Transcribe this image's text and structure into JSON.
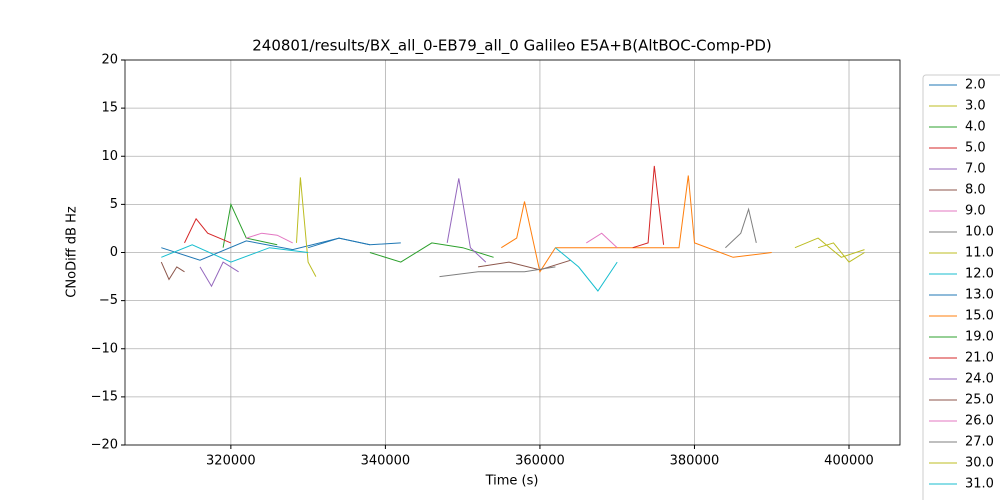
{
  "chart_data": {
    "type": "line",
    "title": "240801/results/BX_all_0-EB79_all_0 Galileo E5A+B(AltBOC-Comp-PD)",
    "x_label": "Time (s)",
    "y_label": "CNoDiff dB Hz",
    "xlim": [
      306300,
      406600
    ],
    "ylim": [
      -20,
      20
    ],
    "xticks": [
      320000,
      340000,
      360000,
      380000,
      400000
    ],
    "yticks": [
      {
        "value": -20,
        "label": "−20"
      },
      {
        "value": -15,
        "label": "−15"
      },
      {
        "value": -10,
        "label": "−10"
      },
      {
        "value": -5,
        "label": "−5"
      },
      0,
      5,
      10,
      15,
      20
    ],
    "grid": true,
    "legend": "outside right",
    "series": [
      {
        "name": "2.0",
        "color": "#1f77b4",
        "x": [
          311000,
          316000,
          322000,
          328000,
          334000,
          338000
        ],
        "values": [
          0.5,
          -0.8,
          1.2,
          0.3,
          1.5,
          0.8
        ]
      },
      {
        "name": "3.0",
        "color": "#bcbd22",
        "x": [
          328500,
          329000,
          330000,
          331000
        ],
        "values": [
          1,
          7.8,
          -1,
          -2.5
        ]
      },
      {
        "name": "4.0",
        "color": "#2ca02c",
        "x": [
          319000,
          320000,
          322000,
          326000
        ],
        "values": [
          0.5,
          5,
          1.5,
          0.8
        ]
      },
      {
        "name": "5.0",
        "color": "#d62728",
        "x": [
          314000,
          315500,
          317000,
          320000
        ],
        "values": [
          1,
          3.5,
          2,
          1
        ]
      },
      {
        "name": "7.0",
        "color": "#9467bd",
        "x": [
          316000,
          317500,
          319000,
          321000
        ],
        "values": [
          -1.5,
          -3.5,
          -1,
          -2
        ]
      },
      {
        "name": "8.0",
        "color": "#8c564b",
        "x": [
          311000,
          312000,
          313000,
          314000
        ],
        "values": [
          -1,
          -2.8,
          -1.5,
          -2
        ]
      },
      {
        "name": "9.0",
        "color": "#e377c2",
        "x": [
          322000,
          324000,
          326000,
          328000
        ],
        "values": [
          1.5,
          2,
          1.8,
          1
        ]
      },
      {
        "name": "10.0",
        "color": "#7f7f7f",
        "x": [
          384000,
          386000,
          387000,
          388000
        ],
        "values": [
          0.5,
          2,
          4.5,
          1
        ]
      },
      {
        "name": "11.0",
        "color": "#bcbd22",
        "x": [
          393000,
          396000,
          399000,
          402000
        ],
        "values": [
          0.5,
          1.5,
          -0.5,
          0.3
        ]
      },
      {
        "name": "12.0",
        "color": "#17becf",
        "x": [
          311000,
          315000,
          320000,
          325000,
          330000
        ],
        "values": [
          -0.5,
          0.8,
          -1,
          0.5,
          0
        ]
      },
      {
        "name": "13.0",
        "color": "#1f77b4",
        "x": [
          330000,
          334000,
          338000,
          342000
        ],
        "values": [
          0.5,
          1.5,
          0.8,
          1
        ]
      },
      {
        "name": "15.0",
        "color": "#ff7f0e",
        "x": [
          355000,
          357000,
          358000,
          360000,
          362000,
          378000,
          379200,
          380000,
          385000,
          390000
        ],
        "values": [
          0.5,
          1.5,
          5.3,
          -2,
          0.5,
          0.5,
          8,
          1,
          -0.5,
          0
        ]
      },
      {
        "name": "19.0",
        "color": "#2ca02c",
        "x": [
          338000,
          342000,
          346000,
          350000,
          354000
        ],
        "values": [
          0,
          -1,
          1,
          0.5,
          -0.5
        ]
      },
      {
        "name": "21.0",
        "color": "#d62728",
        "x": [
          372000,
          374000,
          374800,
          376000
        ],
        "values": [
          0.5,
          1,
          9,
          0.8
        ]
      },
      {
        "name": "24.0",
        "color": "#9467bd",
        "x": [
          348000,
          349500,
          351000,
          353000
        ],
        "values": [
          1,
          7.7,
          0.5,
          -1
        ]
      },
      {
        "name": "25.0",
        "color": "#8c564b",
        "x": [
          352000,
          356000,
          360000,
          364000
        ],
        "values": [
          -1.5,
          -1,
          -1.8,
          -0.8
        ]
      },
      {
        "name": "26.0",
        "color": "#e377c2",
        "x": [
          366000,
          368000,
          370000
        ],
        "values": [
          1,
          2,
          0.5
        ]
      },
      {
        "name": "27.0",
        "color": "#7f7f7f",
        "x": [
          347000,
          352000,
          358000,
          362000
        ],
        "values": [
          -2.5,
          -2,
          -2,
          -1.5
        ]
      },
      {
        "name": "30.0",
        "color": "#bcbd22",
        "x": [
          396000,
          398000,
          400000,
          402000
        ],
        "values": [
          0.5,
          1,
          -1,
          0
        ]
      },
      {
        "name": "31.0",
        "color": "#17becf",
        "x": [
          362000,
          365000,
          367500,
          370000
        ],
        "values": [
          0.5,
          -1.5,
          -4,
          -1
        ]
      }
    ]
  }
}
